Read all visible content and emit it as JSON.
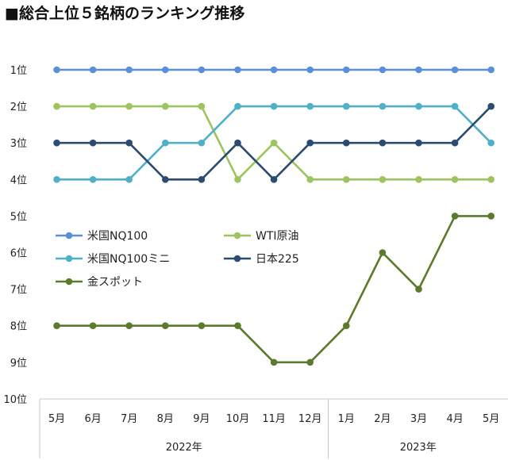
{
  "chart_data": {
    "type": "line",
    "title": "■総合上位５銘柄のランキング推移",
    "categories": [
      "5月",
      "6月",
      "7月",
      "8月",
      "9月",
      "10月",
      "11月",
      "12月",
      "1月",
      "2月",
      "3月",
      "4月",
      "5月"
    ],
    "year_groups": [
      {
        "label": "2022年",
        "start": 0,
        "end": 7
      },
      {
        "label": "2023年",
        "start": 8,
        "end": 12
      }
    ],
    "y_tick_labels": [
      "1位",
      "2位",
      "3位",
      "4位",
      "5位",
      "6位",
      "7位",
      "8位",
      "9位",
      "10位"
    ],
    "ylim": [
      1,
      10
    ],
    "y_inverted": true,
    "series": [
      {
        "name": "米国NQ100",
        "color": "#5b8fd8",
        "values": [
          1,
          1,
          1,
          1,
          1,
          1,
          1,
          1,
          1,
          1,
          1,
          1,
          1
        ]
      },
      {
        "name": "WTI原油",
        "color": "#9dc45f",
        "values": [
          2,
          2,
          2,
          2,
          2,
          4,
          3,
          4,
          4,
          4,
          4,
          4,
          4
        ]
      },
      {
        "name": "米国NQ100ミニ",
        "color": "#4fb0c8",
        "values": [
          4,
          4,
          4,
          3,
          3,
          2,
          2,
          2,
          2,
          2,
          2,
          2,
          3
        ]
      },
      {
        "name": "日本225",
        "color": "#2c4b70",
        "values": [
          3,
          3,
          3,
          4,
          4,
          3,
          4,
          3,
          3,
          3,
          3,
          3,
          2
        ]
      },
      {
        "name": "金スポット",
        "color": "#5b7a2c",
        "values": [
          8,
          8,
          8,
          8,
          8,
          8,
          9,
          9,
          8,
          6,
          7,
          5,
          5
        ]
      }
    ],
    "legend_columns": [
      [
        0,
        2,
        4
      ],
      [
        1,
        3
      ]
    ]
  }
}
